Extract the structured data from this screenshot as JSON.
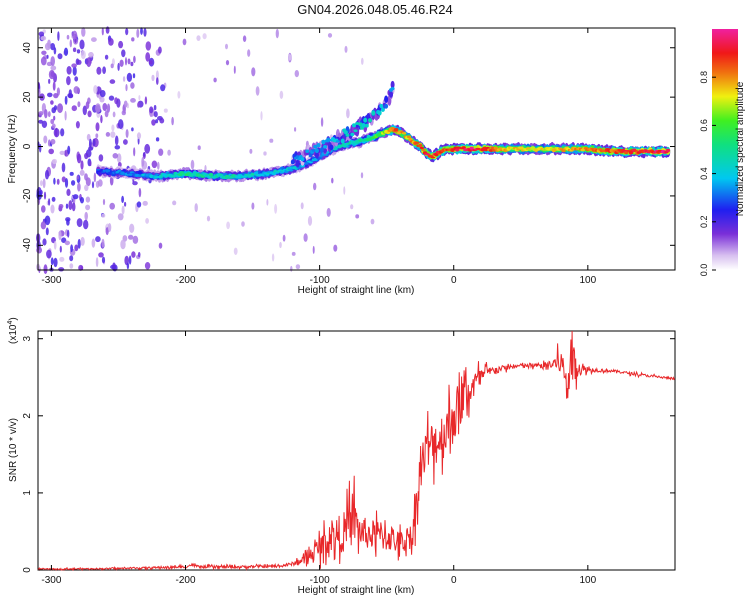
{
  "title": "GN04.2026.048.05.46.R24",
  "colorbar": {
    "label": "Normalized spectral amplitude",
    "ticks": [
      "0.0",
      "0.2",
      "0.4",
      "0.6",
      "0.8"
    ],
    "tick_values": [
      0.0,
      0.2,
      0.4,
      0.6,
      0.8
    ],
    "range": [
      0,
      1
    ]
  },
  "chart_data": [
    {
      "type": "heatmap",
      "title": "",
      "xlabel": "Height of straight line (km)",
      "ylabel": "Frequency (Hz)",
      "xlim": [
        -310,
        165
      ],
      "ylim": [
        -50,
        48
      ],
      "xticks": [
        -300,
        -200,
        -100,
        0,
        100
      ],
      "xtick_labels": [
        "-300",
        "-200",
        "-100",
        "0",
        "100"
      ],
      "yticks": [
        -40,
        -20,
        0,
        20,
        40
      ],
      "ytick_labels": [
        "-40",
        "-20",
        "0",
        "20",
        "40"
      ],
      "ridge": {
        "x": [
          -265,
          -240,
          -220,
          -200,
          -180,
          -160,
          -140,
          -120,
          -110,
          -100,
          -90,
          -80,
          -70,
          -60,
          -50,
          -45,
          -40,
          -35,
          -30,
          -25,
          -20,
          -15,
          -10,
          -5,
          0,
          10,
          20,
          40,
          60,
          80,
          100,
          120,
          140,
          160
        ],
        "frequency": [
          -10,
          -11,
          -12,
          -11,
          -12,
          -12,
          -11,
          -9,
          -7,
          -4,
          -1,
          1,
          2,
          4,
          6,
          7,
          6,
          4,
          2,
          0,
          -3,
          -4,
          -2,
          -1,
          -1,
          -1,
          -1,
          -1,
          -1,
          -1,
          -1,
          -2,
          -2,
          -2
        ],
        "amplitude": [
          0.3,
          0.35,
          0.4,
          0.5,
          0.45,
          0.45,
          0.4,
          0.4,
          0.35,
          0.35,
          0.4,
          0.45,
          0.5,
          0.55,
          0.7,
          0.85,
          0.8,
          0.75,
          0.8,
          0.85,
          0.9,
          0.9,
          0.9,
          0.85,
          0.9,
          0.95,
          0.9,
          0.75,
          0.7,
          0.75,
          0.8,
          0.85,
          0.9,
          0.95
        ]
      },
      "branch": {
        "x": [
          -120,
          -100,
          -80,
          -70,
          -60,
          -50,
          -45
        ],
        "frequency": [
          -6,
          -1,
          5,
          8,
          12,
          18,
          24
        ],
        "amplitude": [
          0.3,
          0.35,
          0.4,
          0.45,
          0.45,
          0.35,
          0.3
        ]
      },
      "noise_region_x": [
        -310,
        -215
      ]
    },
    {
      "type": "line",
      "title": "",
      "xlabel": "Height of straight line (km)",
      "ylabel": "SNR (10 * v/v)",
      "y_multiplier": "(x10",
      "y_multiplier_exp": "4",
      "y_multiplier_close": ")",
      "xlim": [
        -310,
        165
      ],
      "ylim": [
        0,
        3.1
      ],
      "xticks": [
        -300,
        -200,
        -100,
        0,
        100
      ],
      "xtick_labels": [
        "-300",
        "-200",
        "-100",
        "0",
        "100"
      ],
      "yticks": [
        0,
        1,
        2,
        3
      ],
      "ytick_labels": [
        "0",
        "1",
        "2",
        "3"
      ],
      "series": [
        {
          "color": "#e8282a",
          "x": [
            -310,
            -250,
            -200,
            -195,
            -190,
            -160,
            -130,
            -120,
            -110,
            -100,
            -90,
            -80,
            -75,
            -70,
            -60,
            -50,
            -40,
            -35,
            -30,
            -28,
            -25,
            -20,
            -10,
            0,
            10,
            20,
            30,
            50,
            70,
            80,
            85,
            88,
            90,
            95,
            100,
            120,
            140,
            165
          ],
          "y": [
            0.01,
            0.02,
            0.04,
            0.07,
            0.04,
            0.04,
            0.05,
            0.08,
            0.15,
            0.3,
            0.45,
            0.5,
            0.7,
            0.5,
            0.45,
            0.45,
            0.35,
            0.4,
            0.5,
            0.9,
            1.3,
            1.6,
            1.7,
            2.0,
            2.3,
            2.5,
            2.6,
            2.65,
            2.65,
            2.7,
            2.4,
            2.8,
            2.7,
            2.6,
            2.6,
            2.58,
            2.53,
            2.48
          ],
          "noise": [
            0.01,
            0.01,
            0.02,
            0.02,
            0.02,
            0.02,
            0.02,
            0.03,
            0.08,
            0.18,
            0.25,
            0.35,
            0.45,
            0.25,
            0.25,
            0.25,
            0.18,
            0.2,
            0.25,
            0.3,
            0.35,
            0.35,
            0.4,
            0.45,
            0.3,
            0.15,
            0.05,
            0.03,
            0.05,
            0.2,
            0.35,
            0.35,
            0.25,
            0.1,
            0.04,
            0.02,
            0.02,
            0.02
          ]
        }
      ]
    }
  ]
}
